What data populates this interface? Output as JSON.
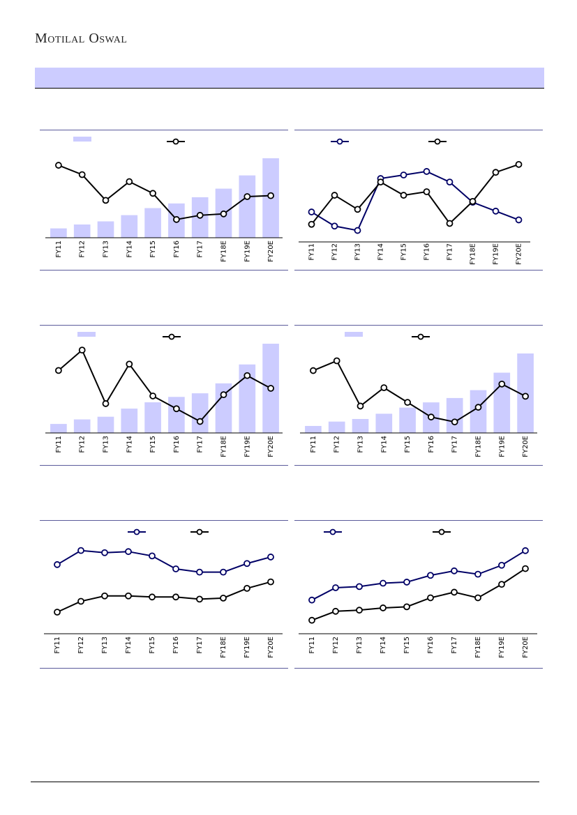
{
  "header": {
    "brand": "Motilal Oswal"
  },
  "colors": {
    "bar": "#ccccff",
    "navy": "#000066",
    "black": "#000000",
    "frame": "#5a5a9a"
  },
  "chart_data": [
    {
      "type": "bar",
      "categories": [
        "FY11",
        "FY12",
        "FY13",
        "FY14",
        "FY15",
        "FY16",
        "FY17",
        "FY18E",
        "FY19E",
        "FY20E"
      ],
      "series": [
        {
          "kind": "bar",
          "values": [
            12,
            17,
            21,
            29,
            38,
            44,
            52,
            63,
            80,
            102
          ]
        },
        {
          "kind": "line",
          "values": [
            30.5,
            28.5,
            23.0,
            27.0,
            24.5,
            18.9,
            19.8,
            20.1,
            23.8,
            24.0
          ]
        }
      ],
      "legend": "top",
      "grid": false
    },
    {
      "type": "line",
      "categories": [
        "FY11",
        "FY12",
        "FY13",
        "FY14",
        "FY15",
        "FY16",
        "FY17",
        "FY18E",
        "FY19E",
        "FY20E"
      ],
      "series": [
        {
          "kind": "line",
          "color": "navy",
          "values": [
            14.4,
            12.8,
            12.3,
            18.2,
            18.6,
            19.0,
            17.8,
            15.5,
            14.5,
            13.5
          ]
        },
        {
          "kind": "line",
          "color": "black",
          "values": [
            13.0,
            16.3,
            14.7,
            17.8,
            16.3,
            16.7,
            13.1,
            15.6,
            18.9,
            19.8
          ]
        }
      ],
      "legend": "top",
      "grid": false
    },
    {
      "type": "bar",
      "categories": [
        "FY11",
        "FY12",
        "FY13",
        "FY14",
        "FY15",
        "FY16",
        "FY17",
        "FY18E",
        "FY19E",
        "FY20E"
      ],
      "series": [
        {
          "kind": "bar",
          "values": [
            10,
            15,
            18,
            27,
            34,
            40,
            44,
            55,
            76,
            99
          ]
        },
        {
          "kind": "line",
          "values": [
            54,
            70,
            28,
            59,
            34,
            24,
            14,
            35,
            50,
            40
          ]
        }
      ],
      "legend": "top",
      "grid": false
    },
    {
      "type": "bar",
      "categories": [
        "FY11",
        "FY12",
        "FY13",
        "FY14",
        "FY15",
        "FY16",
        "FY17",
        "FY18E",
        "FY19E",
        "FY20E"
      ],
      "series": [
        {
          "kind": "bar",
          "values": [
            8,
            13,
            16,
            22,
            29,
            35,
            40,
            49,
            69,
            91
          ]
        },
        {
          "kind": "line",
          "values": [
            61,
            69,
            32,
            47,
            35,
            23,
            19,
            31,
            50,
            40
          ]
        }
      ],
      "legend": "top",
      "grid": false
    },
    {
      "type": "line",
      "categories": [
        "FY11",
        "FY12",
        "FY13",
        "FY14",
        "FY15",
        "FY16",
        "FY17",
        "FY18E",
        "FY19E",
        "FY20E"
      ],
      "series": [
        {
          "kind": "line",
          "color": "navy",
          "values": [
            84,
            97,
            95,
            96,
            92,
            80,
            77,
            77,
            85,
            91
          ]
        },
        {
          "kind": "line",
          "color": "black",
          "values": [
            40,
            50,
            55,
            55,
            54,
            54,
            52,
            53,
            62,
            68
          ]
        }
      ],
      "legend": "top",
      "grid": false
    },
    {
      "type": "line",
      "categories": [
        "FY11",
        "FY12",
        "FY13",
        "FY14",
        "FY15",
        "FY16",
        "FY17",
        "FY18E",
        "FY19E",
        "FY20E"
      ],
      "series": [
        {
          "kind": "line",
          "color": "navy",
          "values": [
            48,
            59,
            60,
            63,
            64,
            70,
            74,
            71,
            79,
            92
          ]
        },
        {
          "kind": "line",
          "color": "black",
          "values": [
            30,
            38,
            39,
            41,
            42,
            50,
            55,
            50,
            62,
            76
          ]
        }
      ],
      "legend": "top",
      "grid": false
    }
  ]
}
